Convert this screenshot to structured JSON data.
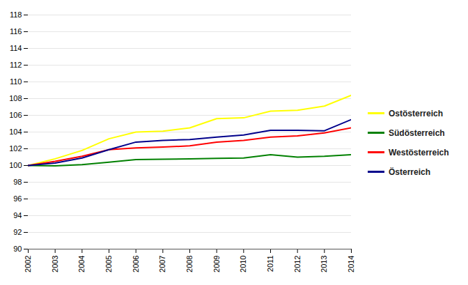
{
  "chart_data": {
    "type": "line",
    "x": [
      2002,
      2003,
      2004,
      2005,
      2006,
      2007,
      2008,
      2009,
      2010,
      2011,
      2012,
      2013,
      2014
    ],
    "series": [
      {
        "name": "Ostösterreich",
        "color": "#ffff00",
        "values": [
          100.0,
          100.8,
          101.8,
          103.2,
          104.0,
          104.1,
          104.5,
          105.6,
          105.7,
          106.5,
          106.6,
          107.1,
          108.4
        ]
      },
      {
        "name": "Südösterreich",
        "color": "#008000",
        "values": [
          100.0,
          99.95,
          100.1,
          100.4,
          100.7,
          100.75,
          100.8,
          100.85,
          100.9,
          101.3,
          101.0,
          101.1,
          101.3
        ]
      },
      {
        "name": "Westösterreich",
        "color": "#ff0000",
        "values": [
          100.0,
          100.5,
          101.1,
          101.9,
          102.1,
          102.2,
          102.35,
          102.8,
          103.0,
          103.4,
          103.55,
          103.9,
          104.5
        ]
      },
      {
        "name": "Österreich",
        "color": "#00008b",
        "values": [
          100.0,
          100.3,
          100.9,
          101.9,
          102.8,
          103.0,
          103.1,
          103.4,
          103.65,
          104.2,
          104.2,
          104.15,
          105.5
        ]
      }
    ],
    "xlim": [
      2002,
      2014
    ],
    "xticks": [
      2002,
      2003,
      2004,
      2005,
      2006,
      2007,
      2008,
      2009,
      2010,
      2011,
      2012,
      2013,
      2014
    ],
    "ylim": [
      90,
      118
    ],
    "yticks": [
      90,
      92,
      94,
      96,
      98,
      100,
      102,
      104,
      106,
      108,
      110,
      112,
      114,
      116,
      118
    ],
    "grid": "y",
    "legend": "right"
  }
}
